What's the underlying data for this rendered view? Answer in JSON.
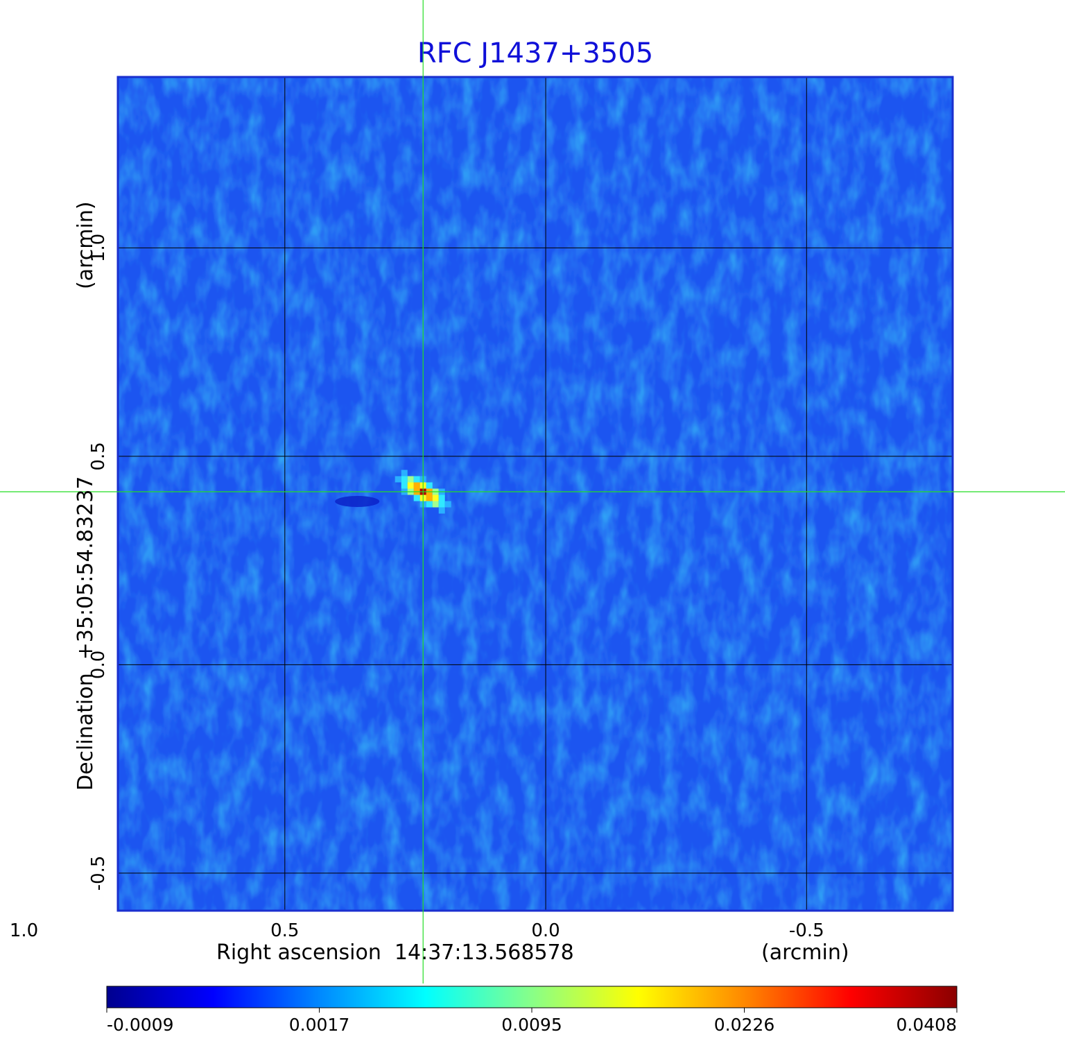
{
  "chart_data": {
    "type": "heatmap",
    "title": "RFC J1437+3505",
    "xlabel": "Right ascension  14:37:13.568578",
    "xunit": "(arcmin)",
    "ylabel": "Declination  +35:05:54.83237",
    "yunit": "(arcmin)",
    "xlim": [
      0.82,
      -0.78
    ],
    "ylim": [
      -0.59,
      1.41
    ],
    "x_ticks": [
      1.0,
      0.5,
      0.0,
      -0.5
    ],
    "x_tick_labels": [
      "1.0",
      "0.5",
      "0.0",
      "-0.5"
    ],
    "y_ticks": [
      -0.5,
      0.0,
      0.5,
      1.0
    ],
    "y_tick_labels": [
      "-0.5",
      "0.0",
      "0.5",
      "1.0"
    ],
    "grid": true,
    "crosshair": {
      "x": 0.235,
      "y": 0.415
    },
    "source_peak": {
      "x": 0.235,
      "y": 0.415,
      "value": 0.0408
    },
    "colorbar": {
      "labels": [
        "-0.0009",
        "0.0017",
        "0.0095",
        "0.0226",
        "0.0408"
      ],
      "colormap": [
        "#00008f",
        "#0000ff",
        "#0088ff",
        "#00ffff",
        "#88ff88",
        "#ffff00",
        "#ff8800",
        "#ff0000",
        "#8b0000"
      ]
    },
    "colors": {
      "background": "#1a55f0",
      "frame": "#1a2fcf",
      "grid": "#000000",
      "crosshair": "#22dd22"
    }
  }
}
